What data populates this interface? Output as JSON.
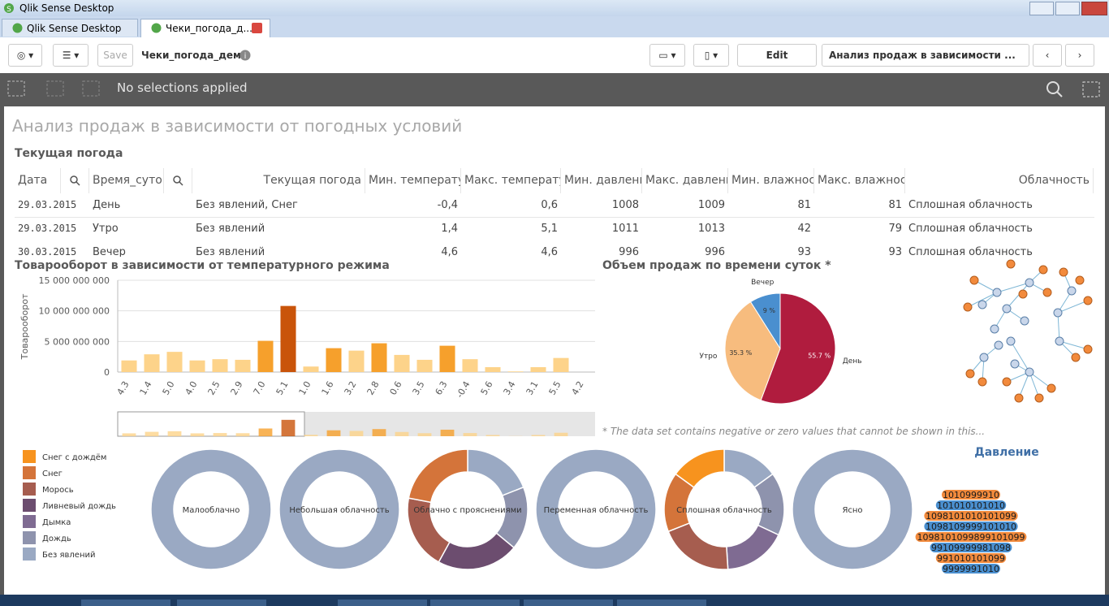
{
  "window": {
    "title": "Qlik Sense Desktop"
  },
  "tabs": [
    "Qlik Sense Desktop hub",
    "Чеки_погода_д..."
  ],
  "toolbar": {
    "save": "Save",
    "app_name": "Чеки_погода_демо",
    "edit": "Edit",
    "sheet": "Анализ продаж в зависимости ..."
  },
  "selections": "No selections applied",
  "sheet_title": "Анализ продаж в зависимости от погодных условий",
  "table": {
    "title": "Текущая погода",
    "columns": [
      "Дата",
      "Время_суток",
      "Текущая погода",
      "Мин. температура",
      "Макс. температура",
      "Мин. давление",
      "Макс. давление",
      "Мин. влажность",
      "Макс. влажность",
      "Облачность"
    ],
    "rows": [
      [
        "29.03.2015",
        "День",
        "Без явлений, Снег",
        "-0,4",
        "0,6",
        "1008",
        "1009",
        "81",
        "81",
        "Сплошная облачность"
      ],
      [
        "29.03.2015",
        "Утро",
        "Без явлений",
        "1,4",
        "5,1",
        "1011",
        "1013",
        "42",
        "79",
        "Сплошная облачность"
      ],
      [
        "30.03.2015",
        "Вечер",
        "Без явлений",
        "4,6",
        "4,6",
        "996",
        "996",
        "93",
        "93",
        "Сплошная облачность"
      ]
    ]
  },
  "bar_chart": {
    "type": "bar",
    "title": "Товарооборот в зависимости от температурного режима",
    "y_label": "Товарооборот",
    "categories": [
      "4.3",
      "1.4",
      "5.0",
      "4.0",
      "2.5",
      "2.9",
      "7.0",
      "5.1",
      "1.0",
      "1.6",
      "3.2",
      "2.8",
      "0.6",
      "3.5",
      "6.3",
      "-0.4",
      "5.6",
      "3.4",
      "3.1",
      "5.5",
      "4.2"
    ],
    "values": [
      1900000000,
      2900000000,
      3300000000,
      1900000000,
      2100000000,
      2000000000,
      5100000000,
      10800000000,
      900000000,
      3900000000,
      3500000000,
      4700000000,
      2800000000,
      2000000000,
      4300000000,
      2100000000,
      800000000,
      100000000,
      800000000,
      2300000000,
      0
    ],
    "colors": [
      "#fdd38a",
      "#fdd38a",
      "#fdd38a",
      "#fdd38a",
      "#fdd38a",
      "#fdd38a",
      "#f6a02c",
      "#c9540a",
      "#fdd38a",
      "#f6a02c",
      "#fdd38a",
      "#f6a02c",
      "#fdd38a",
      "#fdd38a",
      "#f6a02c",
      "#fdd38a",
      "#fdd38a",
      "#fdd38a",
      "#fdd38a",
      "#fdd38a",
      "#fdd38a"
    ],
    "ylim": [
      0,
      15000000000
    ],
    "yticks": [
      0,
      {
        "value": 5000000000,
        "label": "5 000 000 000"
      },
      {
        "value": 10000000000,
        "label": "10 000 000 000"
      },
      {
        "value": 15000000000,
        "label": "15 000 000 000"
      }
    ],
    "grid": true
  },
  "pie_chart": {
    "type": "pie",
    "title": "Объем продаж по времени суток *",
    "categories": [
      "День",
      "Утро",
      "Вечер"
    ],
    "values": [
      55.7,
      35.3,
      9
    ],
    "value_labels": [
      "55.7 %",
      "35.3 %",
      "9 %"
    ],
    "colors": [
      "#b01c3e",
      "#f7bc7e",
      "#4a8fcf"
    ],
    "footnote": "* The data set contains negative or zero values that cannot be shown in this..."
  },
  "cloud_donuts": {
    "type": "donut",
    "legend": [
      "Снег с дождём",
      "Снег",
      "Морось",
      "Ливневый дождь",
      "Дымка",
      "Дождь",
      "Без явлений"
    ],
    "colors": [
      "#f7931e",
      "#d4743a",
      "#a65d4f",
      "#6c4d6f",
      "#7f6b92",
      "#8e93ad",
      "#9aa9c3"
    ],
    "charts": [
      {
        "label": "Малооблачно",
        "values": [
          0,
          0,
          0,
          0,
          0,
          0,
          100
        ]
      },
      {
        "label": "Небольшая облачность",
        "values": [
          0,
          0,
          0,
          0,
          0,
          0,
          100
        ]
      },
      {
        "label": "Облачно с прояснениями",
        "values": [
          0,
          22,
          20,
          22,
          0,
          17,
          19
        ]
      },
      {
        "label": "Переменная облачность",
        "values": [
          0,
          0,
          0,
          0,
          0,
          0,
          100
        ]
      },
      {
        "label": "Сплошная облачность",
        "values": [
          15,
          16,
          20,
          0,
          17,
          17,
          15
        ]
      },
      {
        "label": "Ясно",
        "values": [
          0,
          0,
          0,
          0,
          0,
          0,
          100
        ]
      }
    ]
  },
  "pressure": {
    "title": "Давление",
    "rows": [
      "1010999910",
      "101010101010",
      "1098101010101099",
      "1098109999101010",
      "1098101099899101099",
      "99109999981098",
      "991010101099",
      "9999991010"
    ]
  }
}
